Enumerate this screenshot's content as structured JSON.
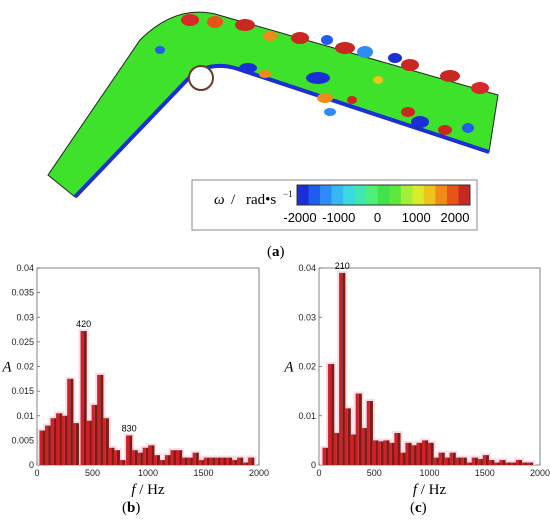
{
  "colorbar": {
    "label_symbol": "ω",
    "label_sep": "/",
    "label_unit": "rad•s",
    "label_exp": "−1",
    "ticks": [
      "-2000",
      "-1000",
      "0",
      "1000",
      "2000"
    ],
    "colors": [
      "#1a2fd6",
      "#1f5cf0",
      "#2e8cf5",
      "#35b7f2",
      "#39d9e0",
      "#3ee8b0",
      "#4ef07a",
      "#41e24b",
      "#5fe63a",
      "#a4ee3a",
      "#d8ec2a",
      "#f0c21c",
      "#f08a18",
      "#e8531a",
      "#c8281f"
    ]
  },
  "captions": {
    "a": "a",
    "b": "b",
    "c": "c"
  },
  "chart_data": [
    {
      "type": "bar",
      "panel": "b",
      "xlabel_var": "f",
      "xlabel_unit": "Hz",
      "ylabel": "A",
      "xlim": [
        0,
        2000
      ],
      "ylim": [
        0,
        0.04
      ],
      "xticks": [
        0,
        500,
        1000,
        1500,
        2000
      ],
      "yticks": [
        0,
        0.005,
        0.01,
        0.015,
        0.02,
        0.025,
        0.03,
        0.035,
        0.04
      ],
      "ytick_labels": [
        "0",
        "0.005",
        "0.01",
        "0.015",
        "0.02",
        "0.025",
        "0.03",
        "0.035",
        "0.04"
      ],
      "x": [
        50,
        100,
        150,
        200,
        250,
        300,
        350,
        420,
        470,
        520,
        570,
        620,
        670,
        720,
        770,
        830,
        880,
        930,
        980,
        1030,
        1080,
        1130,
        1180,
        1230,
        1280,
        1330,
        1380,
        1430,
        1480,
        1530,
        1580,
        1630,
        1680,
        1730,
        1780,
        1830,
        1880,
        1930
      ],
      "values": [
        0.007,
        0.008,
        0.0095,
        0.0105,
        0.01,
        0.0175,
        0.0085,
        0.0272,
        0.009,
        0.0122,
        0.0183,
        0.0095,
        0.0035,
        0.003,
        0.001,
        0.006,
        0.003,
        0.0025,
        0.0035,
        0.004,
        0.002,
        0.001,
        0.002,
        0.003,
        0.003,
        0.0015,
        0.0015,
        0.0025,
        0.001,
        0.0015,
        0.0015,
        0.0015,
        0.0015,
        0.0015,
        0.001,
        0.0015,
        0.0005,
        0.0015
      ],
      "annotations": [
        {
          "x": 420,
          "y": 0.0272,
          "text": "420"
        },
        {
          "x": 830,
          "y": 0.006,
          "text": "830"
        }
      ]
    },
    {
      "type": "bar",
      "panel": "c",
      "xlabel_var": "f",
      "xlabel_unit": "Hz",
      "ylabel": "A",
      "xlim": [
        0,
        2000
      ],
      "ylim": [
        0,
        0.04
      ],
      "xticks": [
        0,
        500,
        1000,
        1500,
        2000
      ],
      "yticks": [
        0,
        0.01,
        0.02,
        0.03,
        0.04
      ],
      "ytick_labels": [
        "0",
        "0.01",
        "0.02",
        "0.03",
        "0.04"
      ],
      "x": [
        60,
        110,
        160,
        210,
        260,
        310,
        360,
        410,
        460,
        510,
        560,
        610,
        660,
        710,
        760,
        810,
        860,
        910,
        960,
        1010,
        1060,
        1110,
        1160,
        1210,
        1260,
        1310,
        1360,
        1410,
        1460,
        1510,
        1560,
        1610,
        1660,
        1710,
        1760,
        1810,
        1860,
        1910
      ],
      "values": [
        0.0035,
        0.0205,
        0.0065,
        0.039,
        0.0115,
        0.0062,
        0.0145,
        0.0075,
        0.013,
        0.005,
        0.0048,
        0.005,
        0.0045,
        0.0065,
        0.0025,
        0.0045,
        0.004,
        0.0045,
        0.005,
        0.0045,
        0.0015,
        0.0025,
        0.0015,
        0.0025,
        0.0015,
        0.0015,
        0.0005,
        0.0015,
        0.0012,
        0.002,
        0.001,
        0.0005,
        0.001,
        0.0005,
        0.0005,
        0.001,
        0.0005,
        0.0005
      ],
      "annotations": [
        {
          "x": 210,
          "y": 0.039,
          "text": "210"
        }
      ]
    }
  ]
}
